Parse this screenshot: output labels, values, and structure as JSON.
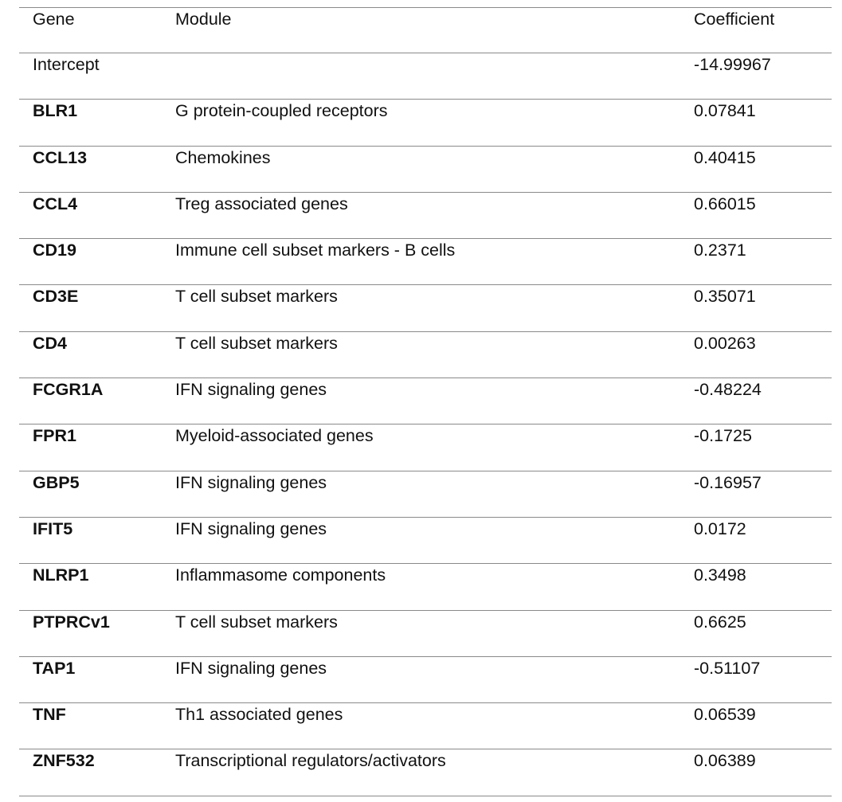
{
  "table": {
    "headers": {
      "gene": "Gene",
      "module": "Module",
      "coefficient": "Coefficient"
    },
    "rows": [
      {
        "gene": "Intercept",
        "module": "",
        "coefficient": "-14.99967",
        "bold": false
      },
      {
        "gene": "BLR1",
        "module": "G protein-coupled receptors",
        "coefficient": "0.07841",
        "bold": true
      },
      {
        "gene": "CCL13",
        "module": "Chemokines",
        "coefficient": "0.40415",
        "bold": true
      },
      {
        "gene": "CCL4",
        "module": "Treg associated genes",
        "coefficient": "0.66015",
        "bold": true
      },
      {
        "gene": "CD19",
        "module": "Immune cell subset markers - B cells",
        "coefficient": "0.2371",
        "bold": true
      },
      {
        "gene": "CD3E",
        "module": "T cell subset markers",
        "coefficient": "0.35071",
        "bold": true
      },
      {
        "gene": "CD4",
        "module": "T cell subset markers",
        "coefficient": "0.00263",
        "bold": true
      },
      {
        "gene": "FCGR1A",
        "module": "IFN signaling genes",
        "coefficient": "-0.48224",
        "bold": true
      },
      {
        "gene": "FPR1",
        "module": "Myeloid-associated genes",
        "coefficient": "-0.1725",
        "bold": true
      },
      {
        "gene": "GBP5",
        "module": "IFN signaling genes",
        "coefficient": "-0.16957",
        "bold": true
      },
      {
        "gene": "IFIT5",
        "module": "IFN signaling genes",
        "coefficient": "0.0172",
        "bold": true
      },
      {
        "gene": "NLRP1",
        "module": "Inflammasome components",
        "coefficient": "0.3498",
        "bold": true
      },
      {
        "gene": "PTPRCv1",
        "module": "T cell subset markers",
        "coefficient": "0.6625",
        "bold": true
      },
      {
        "gene": "TAP1",
        "module": "IFN signaling genes",
        "coefficient": "-0.51107",
        "bold": true
      },
      {
        "gene": "TNF",
        "module": "Th1 associated genes",
        "coefficient": "0.06539",
        "bold": true
      },
      {
        "gene": "ZNF532",
        "module": "Transcriptional regulators/activators",
        "coefficient": "0.06389",
        "bold": true
      }
    ]
  }
}
